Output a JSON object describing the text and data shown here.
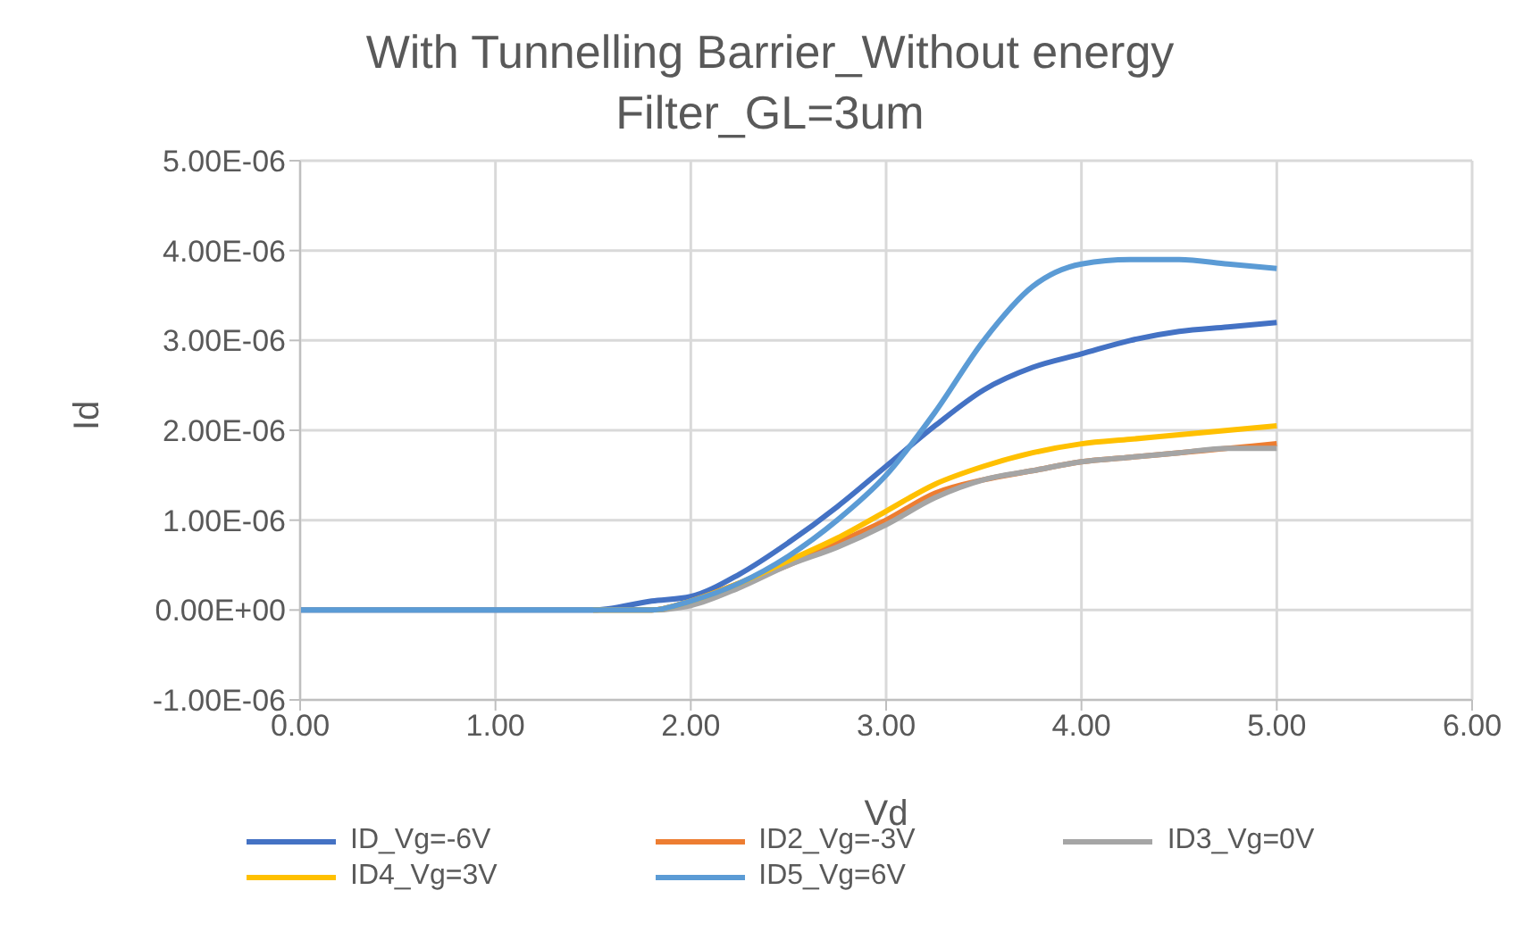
{
  "chart_data": {
    "type": "line",
    "title": "With Tunnelling Barrier_Without energy Filter_GL=3um",
    "xlabel": "Vd",
    "ylabel": "Id",
    "x": [
      0,
      0.5,
      1,
      1.5,
      1.8,
      2,
      2.25,
      2.5,
      2.75,
      3,
      3.25,
      3.5,
      3.75,
      4,
      4.25,
      4.5,
      4.75,
      5
    ],
    "series": [
      {
        "name": "ID_Vg=-6V",
        "color": "#4472c4",
        "values": [
          0,
          0,
          0,
          0,
          1e-07,
          1.5e-07,
          4e-07,
          7.5e-07,
          1.15e-06,
          1.6e-06,
          2.05e-06,
          2.45e-06,
          2.7e-06,
          2.85e-06,
          3e-06,
          3.1e-06,
          3.15e-06,
          3.2e-06
        ]
      },
      {
        "name": "ID2_Vg=-3V",
        "color": "#ed7d31",
        "values": [
          null,
          null,
          null,
          0,
          0,
          1e-07,
          3e-07,
          5e-07,
          7.5e-07,
          1e-06,
          1.3e-06,
          1.45e-06,
          1.55e-06,
          1.65e-06,
          1.7e-06,
          1.75e-06,
          1.8e-06,
          1.85e-06
        ]
      },
      {
        "name": "ID3_Vg=0V",
        "color": "#a5a5a5",
        "values": [
          0,
          0,
          0,
          0,
          0,
          5e-08,
          2.5e-07,
          5e-07,
          7e-07,
          9.5e-07,
          1.25e-06,
          1.45e-06,
          1.55e-06,
          1.65e-06,
          1.7e-06,
          1.75e-06,
          1.8e-06,
          1.8e-06
        ]
      },
      {
        "name": "ID4_Vg=3V",
        "color": "#ffc000",
        "values": [
          null,
          null,
          null,
          0,
          0,
          1e-07,
          3e-07,
          5.5e-07,
          8e-07,
          1.1e-06,
          1.4e-06,
          1.6e-06,
          1.75e-06,
          1.85e-06,
          1.9e-06,
          1.95e-06,
          2e-06,
          2.05e-06
        ]
      },
      {
        "name": "ID5_Vg=6V",
        "color": "#5b9bd5",
        "values": [
          0,
          0,
          0,
          0,
          0,
          1e-07,
          3e-07,
          6e-07,
          1e-06,
          1.5e-06,
          2.2e-06,
          3e-06,
          3.6e-06,
          3.85e-06,
          3.9e-06,
          3.9e-06,
          3.85e-06,
          3.8e-06
        ]
      }
    ],
    "xlim": [
      0,
      6
    ],
    "xticks": [
      {
        "value": 0,
        "label": "0.00"
      },
      {
        "value": 1,
        "label": "1.00"
      },
      {
        "value": 2,
        "label": "2.00"
      },
      {
        "value": 3,
        "label": "3.00"
      },
      {
        "value": 4,
        "label": "4.00"
      },
      {
        "value": 5,
        "label": "5.00"
      },
      {
        "value": 6,
        "label": "6.00"
      }
    ],
    "ylim": [
      -1e-06,
      5e-06
    ],
    "yticks": [
      {
        "value": -1e-06,
        "label": "-1.00E-06"
      },
      {
        "value": 0,
        "label": "0.00E+00"
      },
      {
        "value": 1e-06,
        "label": "1.00E-06"
      },
      {
        "value": 2e-06,
        "label": "2.00E-06"
      },
      {
        "value": 3e-06,
        "label": "3.00E-06"
      },
      {
        "value": 4e-06,
        "label": "4.00E-06"
      },
      {
        "value": 5e-06,
        "label": "5.00E-06"
      }
    ],
    "grid": true,
    "legend": "bottom",
    "marker": "none",
    "line_style": "solid"
  }
}
